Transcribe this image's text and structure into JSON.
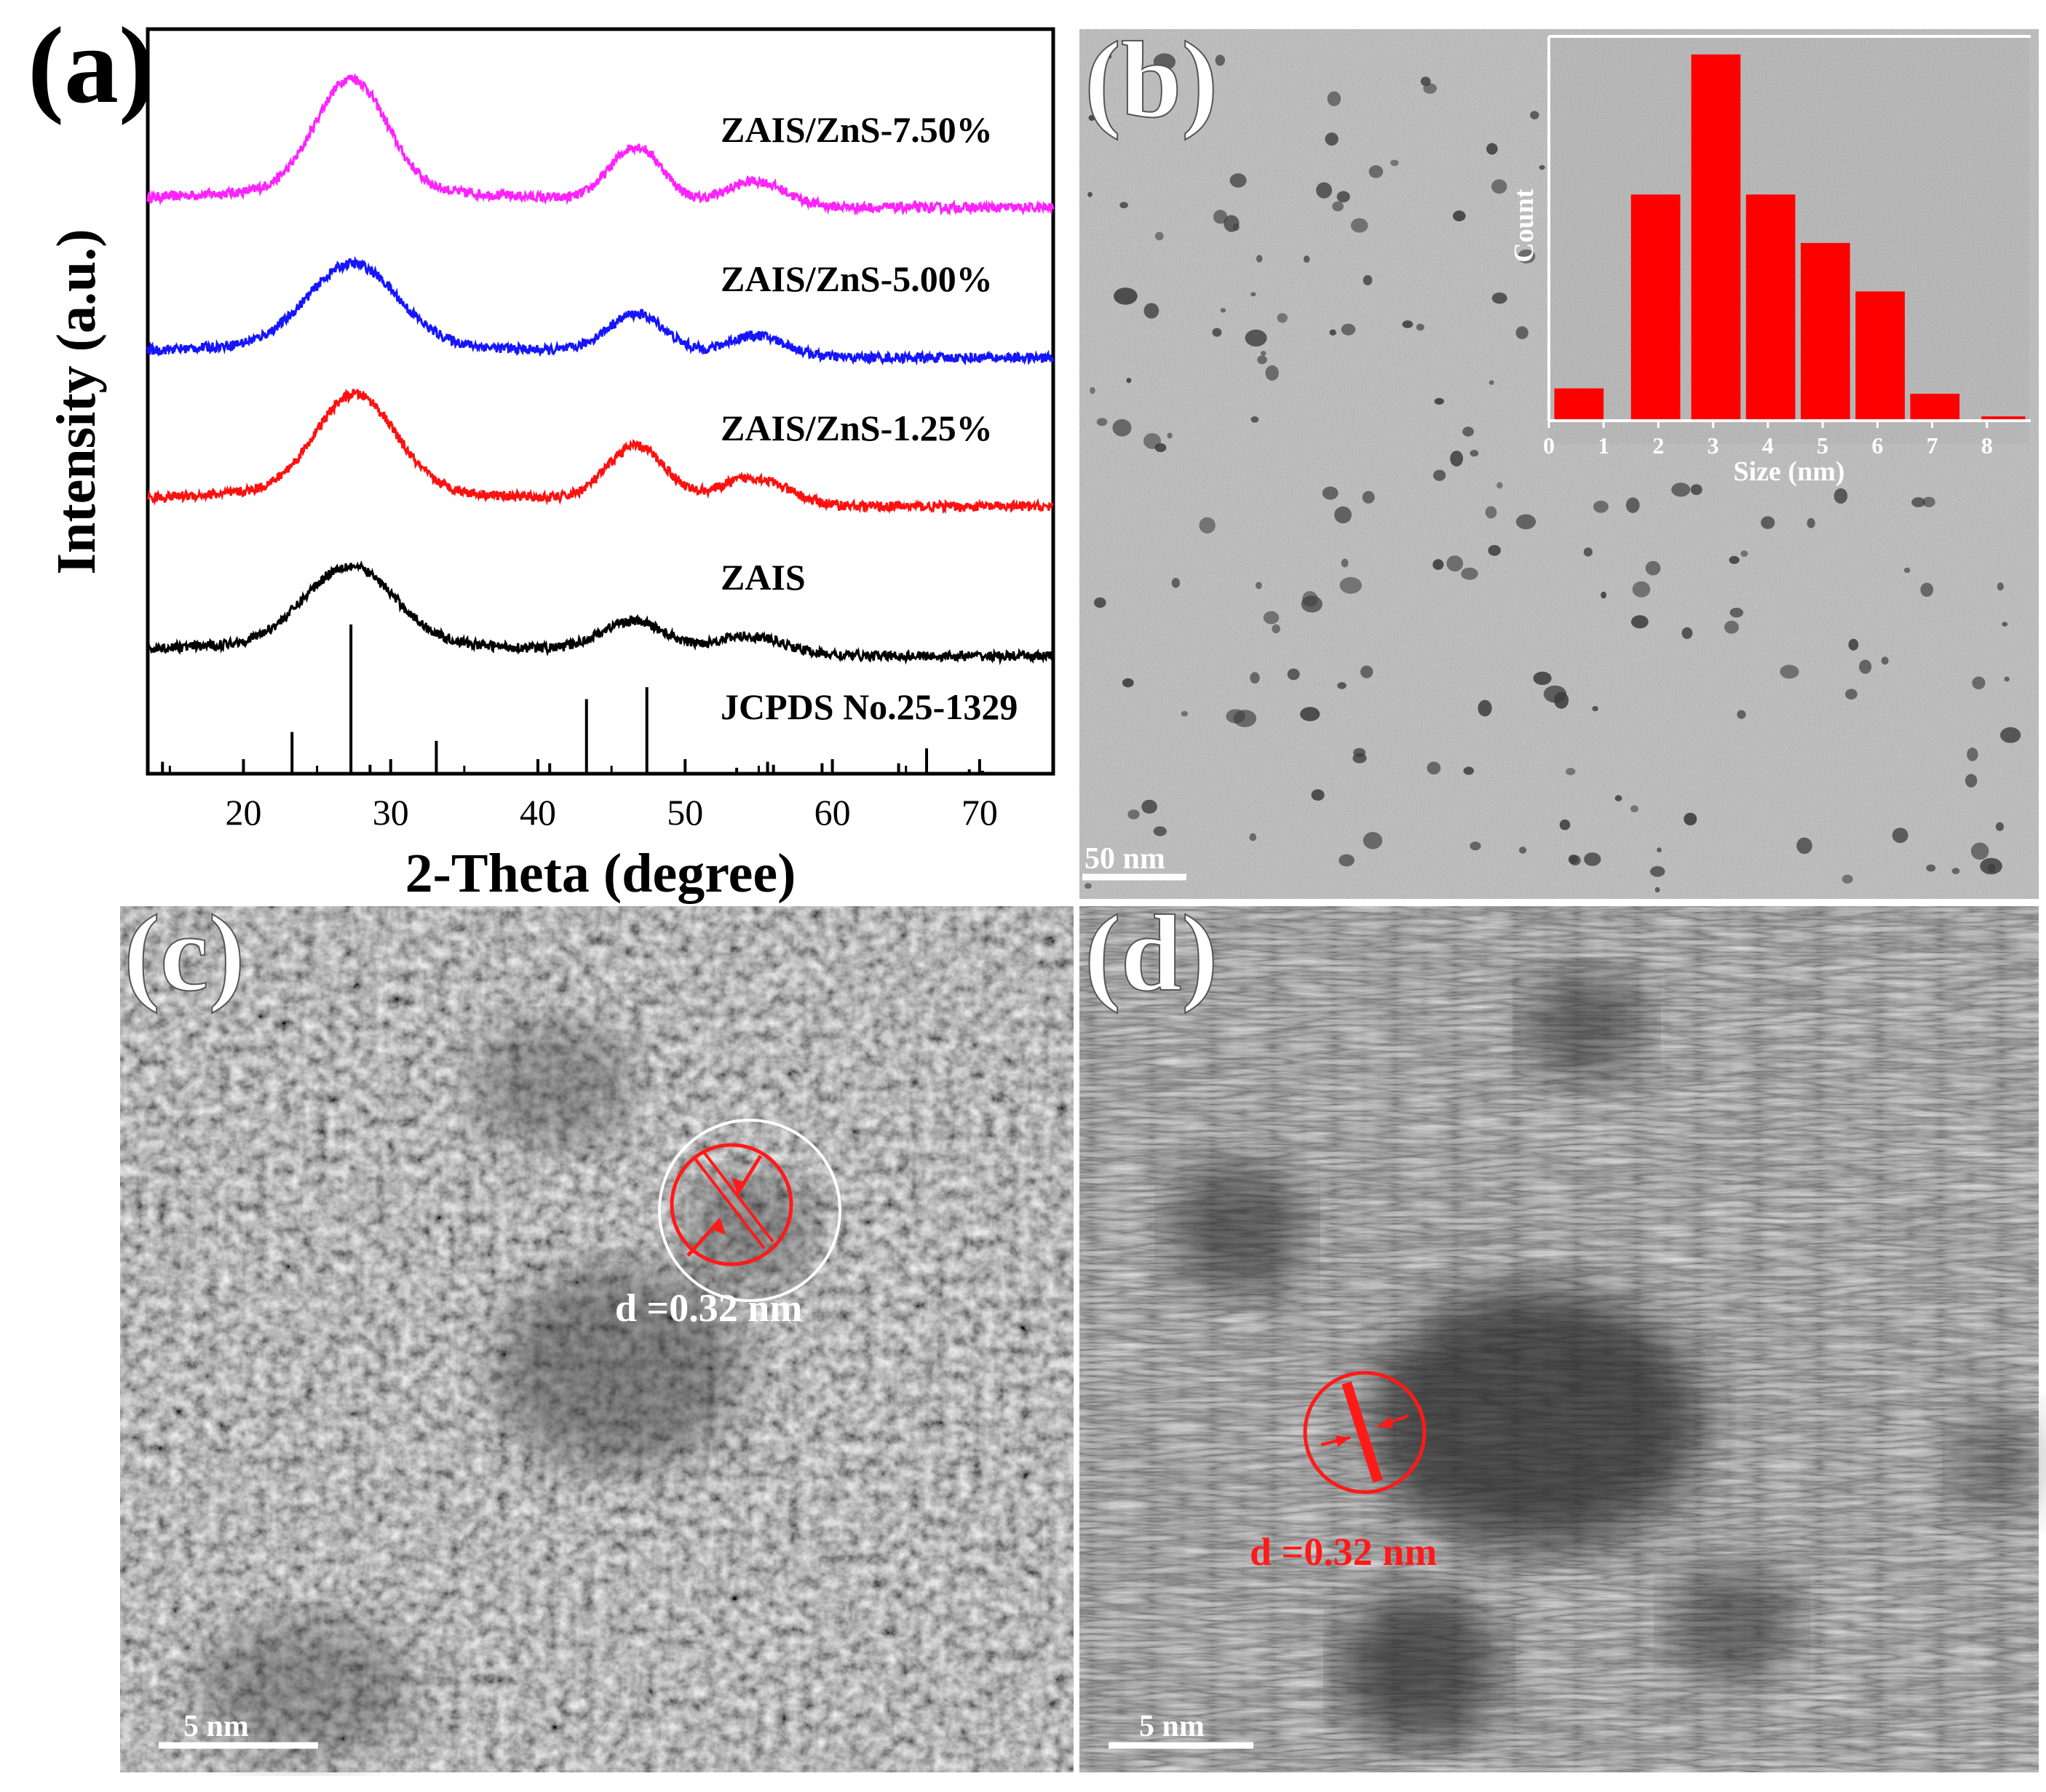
{
  "panels": {
    "a": {
      "label": "(a)"
    },
    "b": {
      "label": "(b)",
      "scalebar": "50 nm"
    },
    "c": {
      "label": "(c)",
      "scalebar": "5 nm",
      "annotation": "d =0.32 nm"
    },
    "d": {
      "label": "(d)",
      "scalebar": "5 nm",
      "annotation": "d =0.32 nm"
    }
  },
  "colors": {
    "ZAIS": "#000000",
    "ZAIS/ZnS-1.25%": "#ff1010",
    "ZAIS/ZnS-5.00%": "#1515ff",
    "ZAIS/ZnS-7.50%": "#ff22ff",
    "reference": "#000000",
    "histogram": "#ff0000",
    "annotation": "#ff1a1a",
    "tem_background": "#8e8e8e",
    "hrtem_background": "#7a7a7a"
  },
  "chart_data": [
    {
      "panel": "a",
      "type": "line",
      "title": "",
      "xlabel": "2-Theta (degree)",
      "ylabel": "Intensity (a.u.)",
      "xlim": [
        13.5,
        75
      ],
      "xticks": [
        20,
        30,
        40,
        50,
        60,
        70
      ],
      "y_ticks_shown": false,
      "grid": false,
      "legend": "none; series labelled inline on the right",
      "series": [
        {
          "name": "ZAIS/ZnS-7.50%",
          "offset": 3.0,
          "baseline": 0.08,
          "peaks": [
            {
              "center": 27.3,
              "height": 0.9,
              "width": 2.4
            },
            {
              "center": 46.7,
              "height": 0.45,
              "width": 1.8
            },
            {
              "center": 54.8,
              "height": 0.2,
              "width": 2.0
            }
          ],
          "noise": 0.07
        },
        {
          "name": "ZAIS/ZnS-5.00%",
          "offset": 2.0,
          "baseline": 0.06,
          "peaks": [
            {
              "center": 27.4,
              "height": 0.65,
              "width": 3.0
            },
            {
              "center": 46.7,
              "height": 0.32,
              "width": 2.0
            },
            {
              "center": 54.8,
              "height": 0.17,
              "width": 2.0
            }
          ],
          "noise": 0.07
        },
        {
          "name": "ZAIS/ZnS-1.25%",
          "offset": 1.0,
          "baseline": 0.07,
          "peaks": [
            {
              "center": 27.6,
              "height": 0.78,
              "width": 2.7
            },
            {
              "center": 46.7,
              "height": 0.45,
              "width": 2.0
            },
            {
              "center": 54.6,
              "height": 0.22,
              "width": 2.3
            }
          ],
          "noise": 0.07
        },
        {
          "name": "ZAIS",
          "offset": 0.0,
          "baseline": 0.06,
          "peaks": [
            {
              "center": 27.2,
              "height": 0.62,
              "width": 3.0
            },
            {
              "center": 46.5,
              "height": 0.25,
              "width": 2.2
            },
            {
              "center": 54.3,
              "height": 0.15,
              "width": 2.4
            }
          ],
          "noise": 0.07
        }
      ],
      "reference_pattern": {
        "name": "JCPDS No.25-1329",
        "lines": [
          {
            "x": 14.5,
            "i": 0.08
          },
          {
            "x": 23.3,
            "i": 0.28
          },
          {
            "x": 27.3,
            "i": 1.0
          },
          {
            "x": 28.6,
            "i": 0.06
          },
          {
            "x": 33.1,
            "i": 0.22
          },
          {
            "x": 40.8,
            "i": 0.07
          },
          {
            "x": 43.3,
            "i": 0.5
          },
          {
            "x": 47.4,
            "i": 0.58
          },
          {
            "x": 53.5,
            "i": 0.04
          },
          {
            "x": 55.6,
            "i": 0.08
          },
          {
            "x": 56.0,
            "i": 0.06
          },
          {
            "x": 59.3,
            "i": 0.07
          },
          {
            "x": 64.5,
            "i": 0.07
          },
          {
            "x": 66.4,
            "i": 0.17
          },
          {
            "x": 69.3,
            "i": 0.03
          },
          {
            "x": 70.2,
            "i": 0.02
          }
        ]
      }
    },
    {
      "panel": "b-inset",
      "type": "bar",
      "title": "",
      "xlabel": "Size (nm)",
      "ylabel": "Count",
      "xlim": [
        0,
        8.8
      ],
      "ylim": [
        0,
        35
      ],
      "xticks": [
        0,
        1,
        2,
        3,
        4,
        5,
        6,
        7,
        8
      ],
      "y_ticks_shown": false,
      "bin_width": 0.9,
      "bins": [
        {
          "center": 0.55,
          "count": 3
        },
        {
          "center": 1.95,
          "count": 21
        },
        {
          "center": 3.05,
          "count": 34
        },
        {
          "center": 4.05,
          "count": 21
        },
        {
          "center": 5.05,
          "count": 16.5
        },
        {
          "center": 6.05,
          "count": 12
        },
        {
          "center": 7.05,
          "count": 2.5
        },
        {
          "center": 8.3,
          "count": 0.4
        }
      ]
    }
  ]
}
